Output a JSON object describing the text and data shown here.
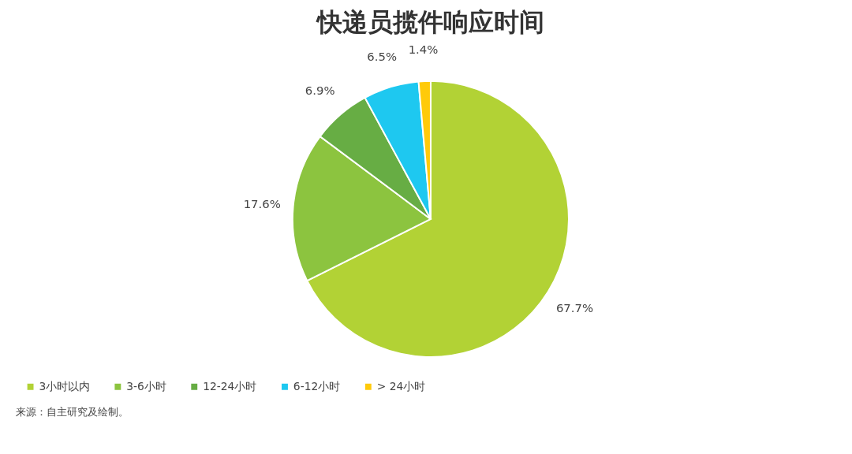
{
  "chart_data": {
    "type": "pie",
    "title": "快递员揽件响应时间",
    "categories": [
      "3小时以内",
      "3-6小时",
      "12-24小时",
      "6-12小时",
      "> 24小时"
    ],
    "values": [
      67.7,
      17.6,
      6.9,
      6.5,
      1.4
    ],
    "colors": [
      "#b2d235",
      "#8cc43f",
      "#67ad44",
      "#1ec8f0",
      "#ffca0a"
    ],
    "value_labels": [
      "67.7%",
      "17.6%",
      "6.9%",
      "6.5%",
      "1.4%"
    ],
    "legend": "bottom",
    "annotations": [
      "来源：自主研究及绘制。"
    ]
  }
}
